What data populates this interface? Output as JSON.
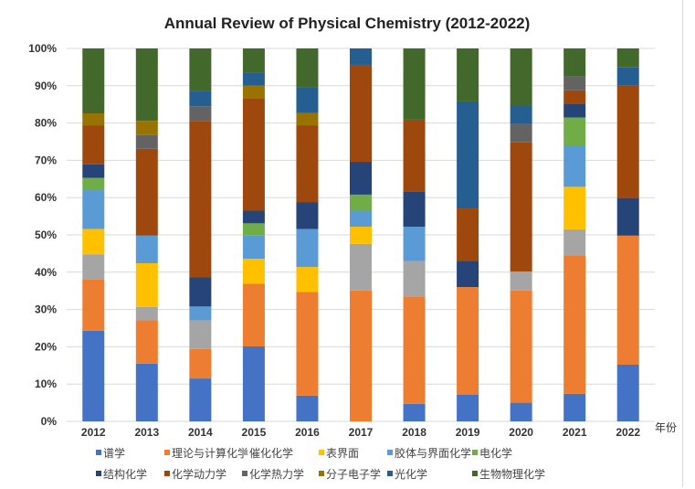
{
  "chart_data": {
    "type": "bar",
    "stacked": true,
    "normalized": true,
    "title": "Annual Review of Physical Chemistry (2012-2022)",
    "xlabel": "年份",
    "ylabel": "",
    "ylim": [
      0,
      100
    ],
    "y_ticks": [
      "0%",
      "10%",
      "20%",
      "30%",
      "40%",
      "50%",
      "60%",
      "70%",
      "80%",
      "90%",
      "100%"
    ],
    "grid": true,
    "legend_position": "bottom",
    "categories": [
      "2012",
      "2013",
      "2014",
      "2015",
      "2016",
      "2017",
      "2018",
      "2019",
      "2020",
      "2021",
      "2022"
    ],
    "series": [
      {
        "name": "谱学",
        "color": "#4472c4",
        "values": [
          24.3,
          15.5,
          11.5,
          20.1,
          6.9,
          0,
          4.7,
          7.2,
          5.0,
          7.4,
          15.2
        ]
      },
      {
        "name": "理论与计算化学",
        "color": "#ed7d31",
        "values": [
          13.7,
          11.6,
          7.9,
          16.8,
          27.8,
          35.1,
          28.8,
          28.8,
          30.1,
          37.1,
          34.6
        ]
      },
      {
        "name": "催化化学",
        "color": "#a5a5a5",
        "values": [
          6.8,
          3.6,
          7.7,
          0,
          0,
          12.5,
          9.5,
          0,
          5.1,
          7.0,
          0
        ]
      },
      {
        "name": "表界面",
        "color": "#ffc000",
        "values": [
          6.8,
          11.7,
          0,
          6.7,
          6.7,
          4.6,
          0,
          0,
          0,
          11.4,
          0
        ]
      },
      {
        "name": "胶体与界面化学",
        "color": "#5b9bd5",
        "values": [
          10.4,
          7.4,
          3.7,
          6.2,
          10.2,
          4.3,
          9.2,
          0,
          0,
          11.0,
          0
        ]
      },
      {
        "name": "电化学",
        "color": "#70ad47",
        "values": [
          3.3,
          0,
          0,
          3.3,
          0,
          4.3,
          0,
          0,
          0,
          7.6,
          0
        ]
      },
      {
        "name": "结构化学",
        "color": "#264478",
        "values": [
          3.6,
          0,
          7.9,
          3.4,
          7.1,
          8.8,
          9.5,
          7.1,
          0,
          3.7,
          10.1
        ]
      },
      {
        "name": "化学动力学",
        "color": "#9e480e",
        "values": [
          10.5,
          23.3,
          41.9,
          30.2,
          20.7,
          26.0,
          19.2,
          14.0,
          34.6,
          3.6,
          30.1
        ]
      },
      {
        "name": "化学热力学",
        "color": "#636363",
        "values": [
          0,
          3.7,
          3.9,
          0,
          0,
          0,
          0,
          0,
          5.1,
          3.7,
          0
        ]
      },
      {
        "name": "分子电子学",
        "color": "#997300",
        "values": [
          3.2,
          3.8,
          0,
          3.3,
          3.3,
          0,
          0,
          0,
          0,
          0,
          0
        ]
      },
      {
        "name": "光化学",
        "color": "#255e91",
        "values": [
          0,
          0,
          4.0,
          3.4,
          6.9,
          4.4,
          0,
          28.7,
          4.9,
          0,
          4.9
        ]
      },
      {
        "name": "生物物理化学",
        "color": "#43682b",
        "values": [
          17.4,
          19.4,
          11.5,
          6.6,
          10.4,
          0,
          19.1,
          14.2,
          15.2,
          7.5,
          5.1
        ]
      }
    ]
  }
}
